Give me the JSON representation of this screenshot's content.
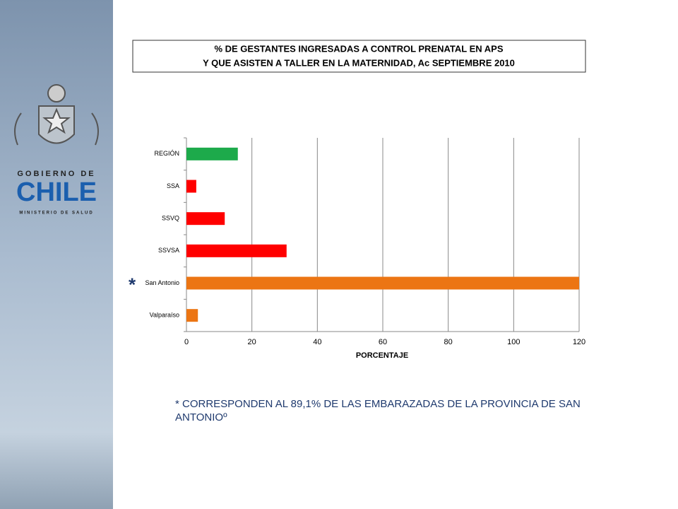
{
  "logo": {
    "top": "GOBIERNO DE",
    "name": "CHILE",
    "bottom": "MINISTERIO DE SALUD"
  },
  "chart_data": {
    "type": "bar",
    "orientation": "horizontal",
    "title": [
      "% DE GESTANTES INGRESADAS A CONTROL PRENATAL EN APS",
      "Y QUE ASISTEN A TALLER EN LA MATERNIDAD, Ac SEPTIEMBRE 2010"
    ],
    "categories": [
      "REGIÓN",
      "SSA",
      "SSVQ",
      "SSVSA",
      "San Antonio",
      "Valparaíso"
    ],
    "values": [
      15.7,
      3,
      11.7,
      30.6,
      120,
      3.5
    ],
    "colors": [
      "#1daa4b",
      "#ff0000",
      "#ff0000",
      "#ff0000",
      "#ec7513",
      "#ec7513"
    ],
    "xlabel": "PORCENTAJE",
    "xlim": [
      0,
      120
    ],
    "xticks": [
      0,
      20,
      40,
      60,
      80,
      100,
      120
    ],
    "grid": true,
    "marker": {
      "category": 4,
      "text": "*"
    },
    "note": "* CORRESPONDEN AL 89,1% DE LAS EMBARAZADAS DE LA PROVINCIA DE SAN ANTONIOº"
  }
}
